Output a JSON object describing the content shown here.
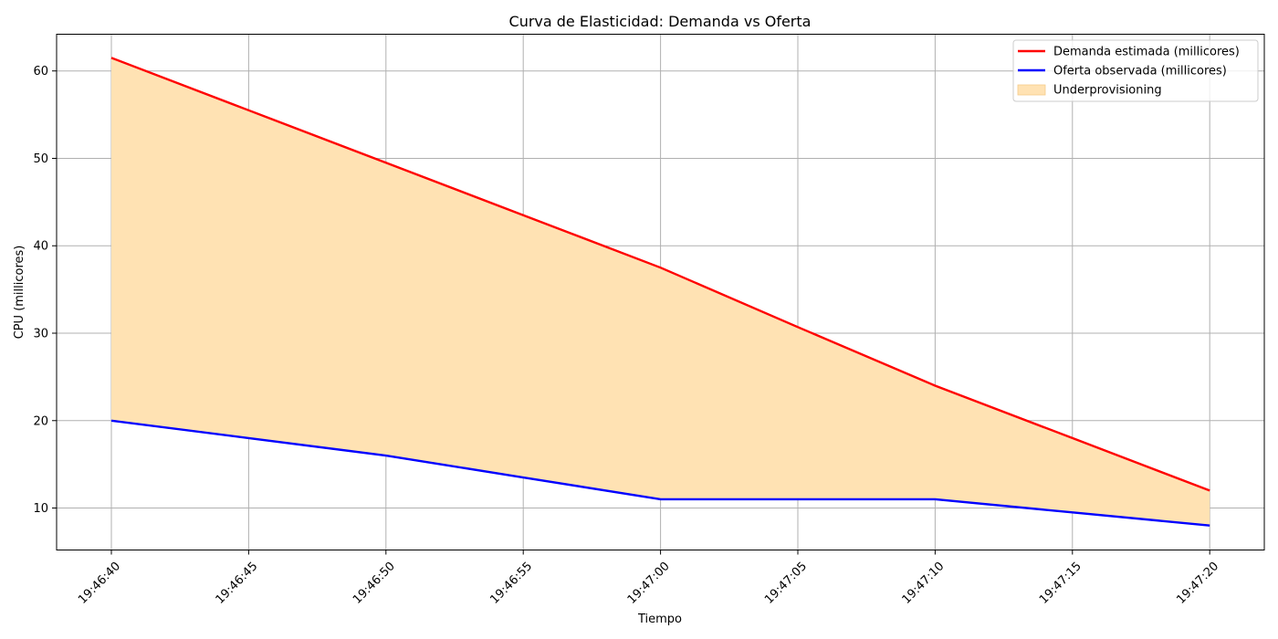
{
  "chart_data": {
    "type": "area",
    "title": "Curva de Elasticidad: Demanda vs Oferta",
    "xlabel": "Tiempo",
    "ylabel": "CPU (millicores)",
    "x": [
      "19:46:40",
      "19:46:45",
      "19:46:50",
      "19:46:55",
      "19:47:00",
      "19:47:05",
      "19:47:10",
      "19:47:15",
      "19:47:20"
    ],
    "x_ticks": [
      "19:46:40",
      "19:46:45",
      "19:46:50",
      "19:46:55",
      "19:47:00",
      "19:47:05",
      "19:47:10",
      "19:47:15",
      "19:47:20"
    ],
    "ylim": [
      5.2,
      64.2
    ],
    "y_ticks": [
      10,
      20,
      30,
      40,
      50,
      60
    ],
    "grid": true,
    "legend_position": "top-right",
    "series": [
      {
        "name": "Demanda estimada (millicores)",
        "color": "#ff0000",
        "values": [
          61.5,
          55.5,
          49.5,
          43.5,
          37.5,
          30.7,
          24.0,
          18.0,
          12.0
        ]
      },
      {
        "name": "Oferta observada (millicores)",
        "color": "#0000ff",
        "values": [
          20.0,
          18.0,
          16.0,
          13.5,
          11.0,
          11.0,
          11.0,
          9.5,
          8.0
        ]
      }
    ],
    "fill_between": {
      "name": "Underprovisioning",
      "color": "#ffe2b3"
    }
  }
}
